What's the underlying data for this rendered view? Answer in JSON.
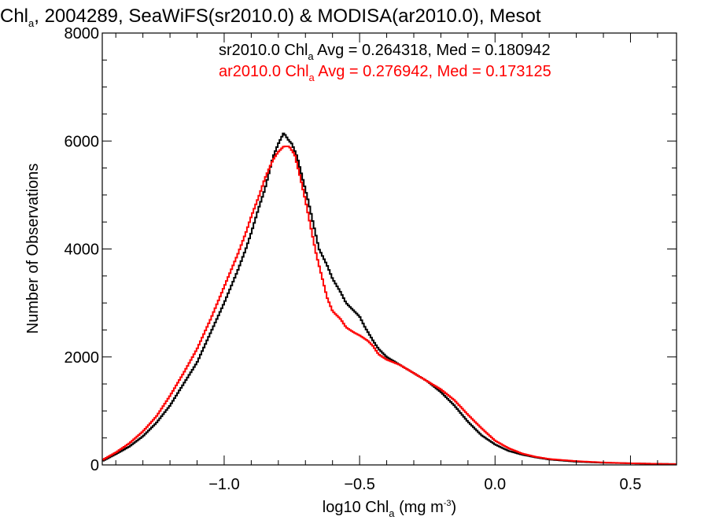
{
  "chart_data": {
    "type": "line",
    "title": {
      "prefix": "Chl",
      "sub": "a",
      "rest": ", 2004289, SeaWiFS(sr2010.0) & MODISA(ar2010.0), Mesot"
    },
    "xlabel": {
      "prefix": "log10 Chl",
      "sub": "a",
      "mid": " (mg m",
      "sup": "-3",
      "end": ")"
    },
    "ylabel": "Number of Observations",
    "xlim": [
      -1.45,
      0.67
    ],
    "ylim": [
      0,
      8000
    ],
    "x_ticks": [
      -1.0,
      -0.5,
      0.0,
      0.5
    ],
    "x_tick_labels": [
      "−1.0",
      "−0.5",
      "0.0",
      "0.5"
    ],
    "y_ticks": [
      0,
      2000,
      4000,
      6000,
      8000
    ],
    "y_tick_labels": [
      "0",
      "2000",
      "4000",
      "6000",
      "8000"
    ],
    "grid": false,
    "series": [
      {
        "name": "sr2010.0",
        "color": "#000000",
        "legend": {
          "prefix": "sr2010.0 Chl",
          "sub": "a",
          "rest": " Avg = 0.264318, Med = 0.180942"
        },
        "points": [
          [
            -1.45,
            70
          ],
          [
            -1.4,
            200
          ],
          [
            -1.35,
            340
          ],
          [
            -1.3,
            530
          ],
          [
            -1.25,
            780
          ],
          [
            -1.2,
            1100
          ],
          [
            -1.15,
            1500
          ],
          [
            -1.1,
            1900
          ],
          [
            -1.05,
            2450
          ],
          [
            -1.0,
            3000
          ],
          [
            -0.95,
            3600
          ],
          [
            -0.92,
            4000
          ],
          [
            -0.9,
            4300
          ],
          [
            -0.87,
            4800
          ],
          [
            -0.85,
            5100
          ],
          [
            -0.82,
            5700
          ],
          [
            -0.8,
            5950
          ],
          [
            -0.78,
            6150
          ],
          [
            -0.76,
            6000
          ],
          [
            -0.75,
            5950
          ],
          [
            -0.73,
            5700
          ],
          [
            -0.71,
            5300
          ],
          [
            -0.69,
            4900
          ],
          [
            -0.67,
            4450
          ],
          [
            -0.65,
            4000
          ],
          [
            -0.62,
            3700
          ],
          [
            -0.6,
            3450
          ],
          [
            -0.57,
            3200
          ],
          [
            -0.55,
            3000
          ],
          [
            -0.52,
            2850
          ],
          [
            -0.5,
            2750
          ],
          [
            -0.48,
            2550
          ],
          [
            -0.45,
            2300
          ],
          [
            -0.43,
            2150
          ],
          [
            -0.4,
            2000
          ],
          [
            -0.35,
            1850
          ],
          [
            -0.3,
            1700
          ],
          [
            -0.25,
            1550
          ],
          [
            -0.2,
            1350
          ],
          [
            -0.15,
            1100
          ],
          [
            -0.1,
            800
          ],
          [
            -0.05,
            550
          ],
          [
            0.0,
            380
          ],
          [
            0.05,
            260
          ],
          [
            0.1,
            190
          ],
          [
            0.15,
            140
          ],
          [
            0.2,
            100
          ],
          [
            0.3,
            60
          ],
          [
            0.4,
            40
          ],
          [
            0.5,
            30
          ],
          [
            0.6,
            20
          ],
          [
            0.67,
            15
          ]
        ]
      },
      {
        "name": "ar2010.0",
        "color": "#ff0000",
        "legend": {
          "prefix": "ar2010.0 Chl",
          "sub": "a",
          "rest": " Avg = 0.276942, Med = 0.173125"
        },
        "points": [
          [
            -1.45,
            90
          ],
          [
            -1.4,
            230
          ],
          [
            -1.35,
            400
          ],
          [
            -1.3,
            620
          ],
          [
            -1.25,
            900
          ],
          [
            -1.2,
            1280
          ],
          [
            -1.15,
            1700
          ],
          [
            -1.1,
            2150
          ],
          [
            -1.05,
            2700
          ],
          [
            -1.0,
            3300
          ],
          [
            -0.95,
            3900
          ],
          [
            -0.92,
            4300
          ],
          [
            -0.9,
            4600
          ],
          [
            -0.87,
            5000
          ],
          [
            -0.85,
            5300
          ],
          [
            -0.82,
            5650
          ],
          [
            -0.8,
            5800
          ],
          [
            -0.78,
            5900
          ],
          [
            -0.76,
            5900
          ],
          [
            -0.74,
            5750
          ],
          [
            -0.72,
            5350
          ],
          [
            -0.7,
            4900
          ],
          [
            -0.68,
            4400
          ],
          [
            -0.66,
            3900
          ],
          [
            -0.64,
            3500
          ],
          [
            -0.62,
            3100
          ],
          [
            -0.6,
            2850
          ],
          [
            -0.57,
            2700
          ],
          [
            -0.55,
            2550
          ],
          [
            -0.52,
            2450
          ],
          [
            -0.5,
            2400
          ],
          [
            -0.47,
            2300
          ],
          [
            -0.45,
            2200
          ],
          [
            -0.43,
            2050
          ],
          [
            -0.4,
            1950
          ],
          [
            -0.35,
            1850
          ],
          [
            -0.3,
            1700
          ],
          [
            -0.25,
            1550
          ],
          [
            -0.2,
            1400
          ],
          [
            -0.15,
            1200
          ],
          [
            -0.1,
            930
          ],
          [
            -0.05,
            680
          ],
          [
            0.0,
            450
          ],
          [
            0.05,
            310
          ],
          [
            0.1,
            210
          ],
          [
            0.15,
            150
          ],
          [
            0.2,
            110
          ],
          [
            0.3,
            70
          ],
          [
            0.4,
            45
          ],
          [
            0.5,
            30
          ],
          [
            0.6,
            20
          ],
          [
            0.67,
            15
          ]
        ]
      }
    ]
  }
}
